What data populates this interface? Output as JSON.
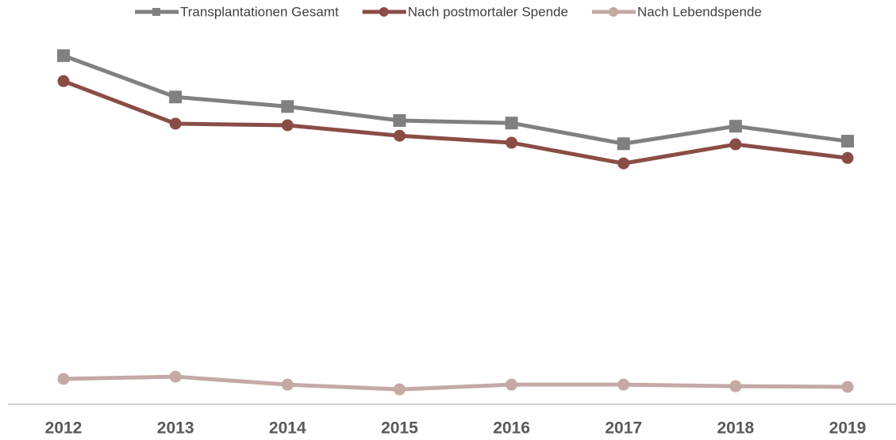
{
  "chart_data": {
    "type": "line",
    "categories": [
      "2012",
      "2013",
      "2014",
      "2015",
      "2016",
      "2017",
      "2018",
      "2019"
    ],
    "series": [
      {
        "name": "Transplantationen Gesamt",
        "color": "#808080",
        "marker": "square",
        "values": [
          1097,
          967,
          937,
          893,
          885,
          820,
          875,
          828
        ]
      },
      {
        "name": "Nach postmortaler Spende",
        "color": "#8a4d45",
        "marker": "circle",
        "values": [
          1017,
          883,
          878,
          845,
          823,
          758,
          818,
          775
        ]
      },
      {
        "name": "Nach Lebendspende",
        "color": "#c4a9a4",
        "marker": "circle",
        "values": [
          80,
          87,
          62,
          47,
          62,
          62,
          57,
          55
        ]
      }
    ],
    "ylim": [
      0,
      1100
    ],
    "legend": "top",
    "grid": false
  }
}
